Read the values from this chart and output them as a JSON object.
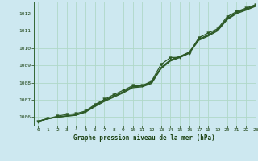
{
  "background_color": "#cde8f0",
  "grid_color": "#b0d8c8",
  "line_color": "#2d5a27",
  "marker_color": "#2d5a27",
  "text_color": "#1a4010",
  "xlabel": "Graphe pression niveau de la mer (hPa)",
  "xlim": [
    -0.5,
    23
  ],
  "ylim": [
    1005.5,
    1012.7
  ],
  "yticks": [
    1006,
    1007,
    1008,
    1009,
    1010,
    1011,
    1012
  ],
  "xticks": [
    0,
    1,
    2,
    3,
    4,
    5,
    6,
    7,
    8,
    9,
    10,
    11,
    12,
    13,
    14,
    15,
    16,
    17,
    18,
    19,
    20,
    21,
    22,
    23
  ],
  "smooth1_x": [
    0,
    1,
    2,
    3,
    4,
    5,
    6,
    7,
    8,
    9,
    10,
    11,
    12,
    13,
    14,
    15,
    16,
    17,
    18,
    19,
    20,
    21,
    22,
    23
  ],
  "smooth1_y": [
    1005.75,
    1005.9,
    1006.0,
    1006.05,
    1006.1,
    1006.3,
    1006.65,
    1006.95,
    1007.2,
    1007.45,
    1007.75,
    1007.8,
    1008.0,
    1008.85,
    1009.3,
    1009.5,
    1009.75,
    1010.5,
    1010.75,
    1011.05,
    1011.7,
    1012.05,
    1012.25,
    1012.45
  ],
  "smooth2_x": [
    0,
    1,
    2,
    3,
    4,
    5,
    6,
    7,
    8,
    9,
    10,
    11,
    12,
    13,
    14,
    15,
    16,
    17,
    18,
    19,
    20,
    21,
    22,
    23
  ],
  "smooth2_y": [
    1005.75,
    1005.9,
    1005.98,
    1006.05,
    1006.12,
    1006.28,
    1006.6,
    1006.9,
    1007.15,
    1007.4,
    1007.7,
    1007.75,
    1007.95,
    1008.8,
    1009.25,
    1009.45,
    1009.7,
    1010.45,
    1010.7,
    1011.0,
    1011.65,
    1012.0,
    1012.2,
    1012.42
  ],
  "smooth3_x": [
    0,
    1,
    2,
    3,
    4,
    5,
    6,
    7,
    8,
    9,
    10,
    11,
    12,
    13,
    14,
    15,
    16,
    17,
    18,
    19,
    20,
    21,
    22,
    23
  ],
  "smooth3_y": [
    1005.75,
    1005.9,
    1006.0,
    1006.07,
    1006.13,
    1006.32,
    1006.67,
    1006.97,
    1007.22,
    1007.47,
    1007.77,
    1007.82,
    1008.02,
    1008.87,
    1009.32,
    1009.52,
    1009.77,
    1010.52,
    1010.77,
    1011.07,
    1011.72,
    1012.07,
    1012.27,
    1012.47
  ],
  "marker_x": [
    0,
    1,
    2,
    3,
    4,
    5,
    6,
    7,
    8,
    9,
    10,
    11,
    12,
    13,
    14,
    15,
    16,
    17,
    18,
    19,
    20,
    21,
    22,
    23
  ],
  "marker_y": [
    1005.75,
    1005.9,
    1006.05,
    1006.15,
    1006.2,
    1006.35,
    1006.72,
    1007.02,
    1007.3,
    1007.55,
    1007.82,
    1007.82,
    1008.08,
    1009.05,
    1009.45,
    1009.47,
    1009.72,
    1010.6,
    1010.88,
    1011.12,
    1011.82,
    1012.12,
    1012.32,
    1012.52
  ]
}
